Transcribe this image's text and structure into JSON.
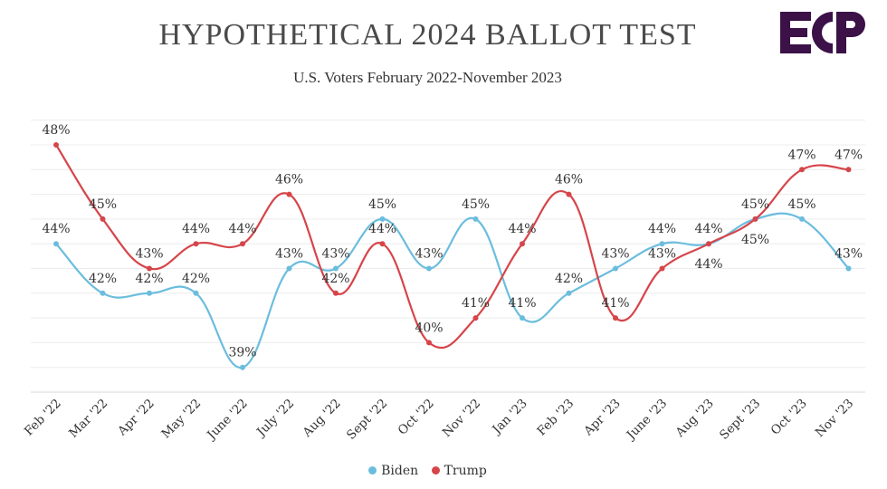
{
  "header": {
    "title": "HYPOTHETICAL 2024 BALLOT TEST",
    "subtitle": "U.S. Voters February 2022-November 2023",
    "logo_text": "ECP"
  },
  "colors": {
    "biden": "#6bbdde",
    "trump": "#d6454a",
    "logo": "#3b1148",
    "grid": "#ececec",
    "text": "#333333"
  },
  "chart_data": {
    "type": "line",
    "title": "HYPOTHETICAL 2024 BALLOT TEST",
    "subtitle": "U.S. Voters February 2022-November 2023",
    "categories": [
      "Feb '22",
      "Mar '22",
      "Apr '22",
      "May '22",
      "June '22",
      "July '22",
      "Aug '22",
      "Sept '22",
      "Oct '22",
      "Nov '22",
      "Jan '23",
      "Feb '23",
      "Apr '23",
      "June '23",
      "Aug '23",
      "Sept '23",
      "Oct '23",
      "Nov '23"
    ],
    "series": [
      {
        "name": "Biden",
        "values": [
          44,
          42,
          42,
          42,
          39,
          43,
          43,
          45,
          43,
          45,
          41,
          42,
          43,
          44,
          44,
          45,
          45,
          43
        ]
      },
      {
        "name": "Trump",
        "values": [
          48,
          45,
          43,
          44,
          44,
          46,
          42,
          44,
          40,
          41,
          44,
          46,
          41,
          43,
          44,
          45,
          47,
          47
        ]
      }
    ],
    "value_suffix": "%",
    "ylim": [
      38,
      49
    ],
    "grid": true,
    "legend": "bottom"
  }
}
